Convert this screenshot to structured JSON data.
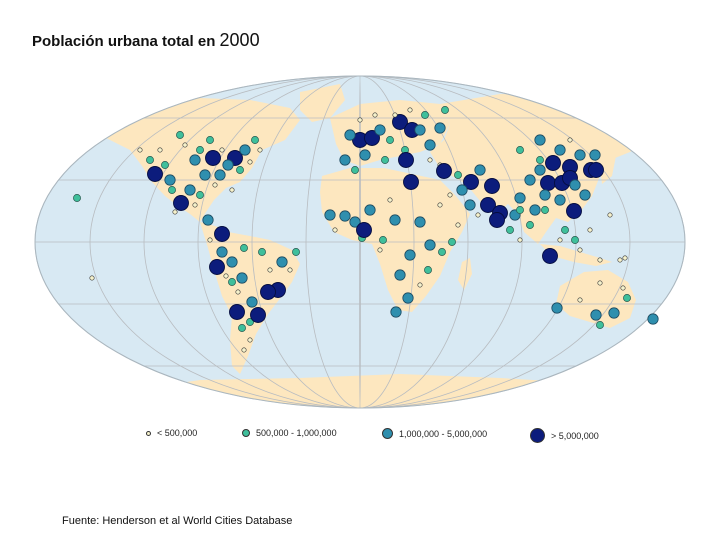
{
  "title": {
    "text": "Población urbana total en",
    "year": "2000"
  },
  "source": "Fuente: Henderson et al World Cities Database",
  "colors": {
    "ocean": "#d8e9f3",
    "land": "#fde7bf",
    "graticule": "#b8bcc0",
    "small": "#f6f2cc",
    "medium": "#3fbf9b",
    "large": "#2f8fae",
    "mega": "#0c1c7c"
  },
  "legend": [
    {
      "label": "< 500,000",
      "class": "small"
    },
    {
      "label": "500,000 - 1,000,000",
      "class": "medium"
    },
    {
      "label": "1,000,000 - 5,000,000",
      "class": "large"
    },
    {
      "label": "> 5,000,000",
      "class": "mega"
    }
  ]
}
